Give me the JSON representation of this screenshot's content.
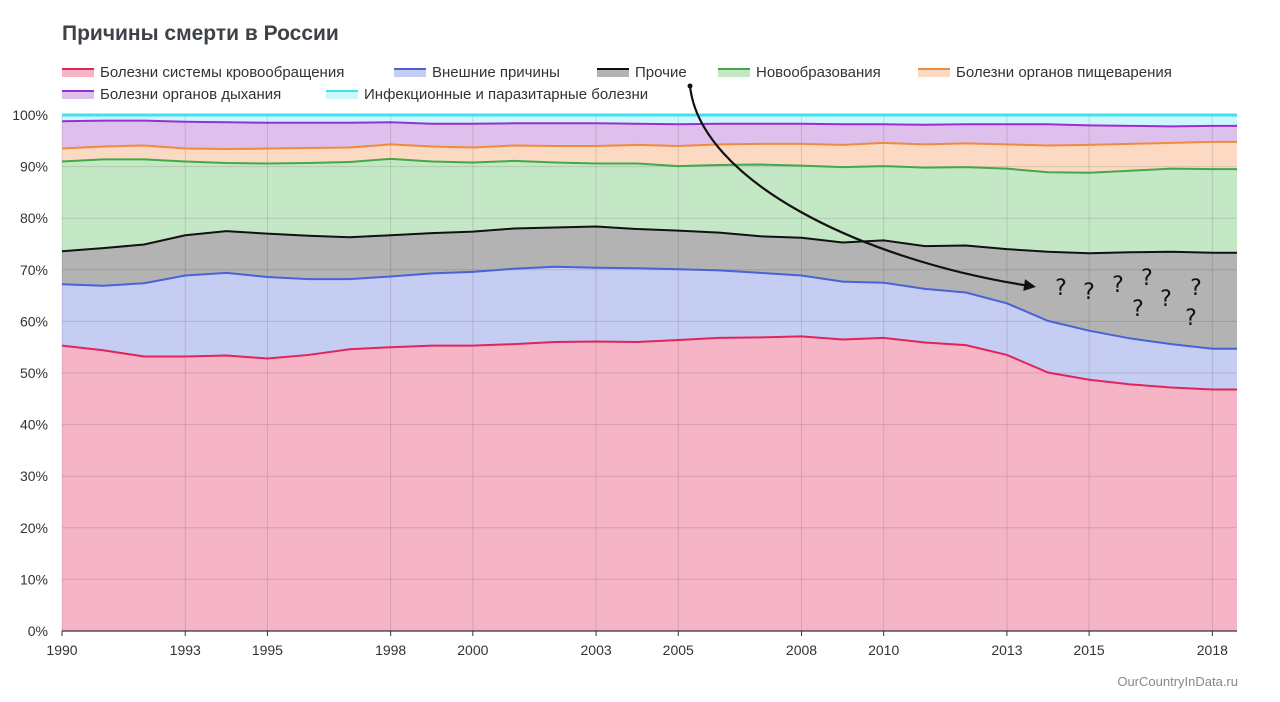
{
  "chart_data": {
    "type": "area",
    "stacked": true,
    "normalized": true,
    "title": "Причины смерти в России",
    "source": "OurCountryInData.ru",
    "x": [
      1990,
      1991,
      1992,
      1993,
      1994,
      1995,
      1996,
      1997,
      1998,
      1999,
      2000,
      2001,
      2002,
      2003,
      2004,
      2005,
      2006,
      2007,
      2008,
      2009,
      2010,
      2011,
      2012,
      2013,
      2014,
      2015,
      2016,
      2017,
      2018
    ],
    "ylim": [
      0,
      100
    ],
    "yticks": [
      "0%",
      "10%",
      "20%",
      "30%",
      "40%",
      "50%",
      "60%",
      "70%",
      "80%",
      "90%",
      "100%"
    ],
    "xticks": [
      "1990",
      "1993",
      "1995",
      "1998",
      "2000",
      "2003",
      "2005",
      "2008",
      "2010",
      "2013",
      "2015",
      "2018"
    ],
    "grid": true,
    "legend_position": "top",
    "series": [
      {
        "name": "Болезни системы кровообращения",
        "color": "#e0245e",
        "fill": "#f5b5c6",
        "cumulative": [
          55.3,
          54.4,
          53.2,
          53.2,
          53.4,
          52.8,
          53.5,
          54.6,
          55.0,
          55.3,
          55.3,
          55.6,
          56.0,
          56.1,
          56.0,
          56.4,
          56.8,
          56.9,
          57.1,
          56.5,
          56.8,
          55.9,
          55.4,
          53.5,
          50.1,
          48.7,
          47.8,
          47.2,
          46.8
        ]
      },
      {
        "name": "Внешние причины",
        "color": "#4a62d6",
        "fill": "#c5cdf2",
        "cumulative": [
          67.2,
          66.9,
          67.4,
          68.9,
          69.4,
          68.6,
          68.2,
          68.2,
          68.7,
          69.3,
          69.6,
          70.2,
          70.6,
          70.4,
          70.3,
          70.1,
          69.9,
          69.4,
          68.9,
          67.7,
          67.5,
          66.3,
          65.6,
          63.5,
          60.1,
          58.2,
          56.7,
          55.6,
          54.7
        ]
      },
      {
        "name": "Прочие",
        "color": "#111111",
        "fill": "#b3b3b3",
        "cumulative": [
          73.6,
          74.2,
          74.9,
          76.7,
          77.5,
          77.0,
          76.6,
          76.3,
          76.7,
          77.1,
          77.4,
          78.0,
          78.2,
          78.4,
          77.9,
          77.6,
          77.2,
          76.5,
          76.2,
          75.3,
          75.7,
          74.6,
          74.7,
          74.0,
          73.5,
          73.2,
          73.4,
          73.5,
          73.3
        ]
      },
      {
        "name": "Новообразования",
        "color": "#44a84a",
        "fill": "#c4e8c6",
        "cumulative": [
          91.0,
          91.4,
          91.4,
          91.0,
          90.7,
          90.6,
          90.7,
          90.9,
          91.5,
          91.0,
          90.8,
          91.1,
          90.8,
          90.6,
          90.6,
          90.1,
          90.3,
          90.4,
          90.2,
          89.9,
          90.1,
          89.8,
          89.9,
          89.6,
          88.9,
          88.8,
          89.2,
          89.6,
          89.5
        ]
      },
      {
        "name": "Болезни органов пищеварения",
        "color": "#f08a3c",
        "fill": "#fbd9c2",
        "cumulative": [
          93.5,
          93.9,
          94.1,
          93.5,
          93.4,
          93.5,
          93.6,
          93.7,
          94.3,
          93.9,
          93.7,
          94.1,
          94.0,
          94.0,
          94.2,
          94.0,
          94.3,
          94.4,
          94.4,
          94.2,
          94.6,
          94.3,
          94.5,
          94.3,
          94.1,
          94.2,
          94.4,
          94.6,
          94.8
        ]
      },
      {
        "name": "Болезни органов дыхания",
        "color": "#9a2fd0",
        "fill": "#dec0ec",
        "cumulative": [
          98.8,
          98.9,
          98.9,
          98.7,
          98.6,
          98.5,
          98.5,
          98.5,
          98.6,
          98.3,
          98.3,
          98.4,
          98.4,
          98.4,
          98.3,
          98.2,
          98.3,
          98.3,
          98.3,
          98.2,
          98.2,
          98.1,
          98.2,
          98.2,
          98.2,
          98.0,
          97.9,
          97.8,
          97.9
        ]
      },
      {
        "name": "Инфекционные и паразитарные болезни",
        "color": "#40e0f0",
        "fill": "#cff7fb",
        "cumulative": [
          100,
          100,
          100,
          100,
          100,
          100,
          100,
          100,
          100,
          100,
          100,
          100,
          100,
          100,
          100,
          100,
          100,
          100,
          100,
          100,
          100,
          100,
          100,
          100,
          100,
          100,
          100,
          100,
          100
        ]
      }
    ],
    "annotations": {
      "arrow_from": "Прочие",
      "question_marks": [
        "?",
        "?",
        "?",
        "?",
        "?",
        "?",
        "?",
        "?"
      ]
    }
  }
}
